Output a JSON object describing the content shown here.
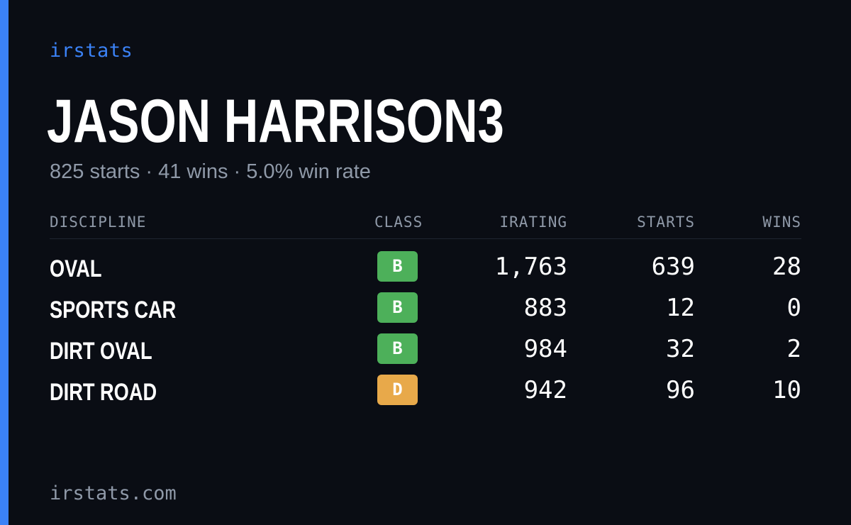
{
  "brand": "irstats",
  "driver": {
    "name": "JASON HARRISON3",
    "summary": "825 starts · 41 wins · 5.0% win rate"
  },
  "table": {
    "headers": {
      "discipline": "DISCIPLINE",
      "class": "CLASS",
      "irating": "IRATING",
      "starts": "STARTS",
      "wins": "WINS"
    },
    "rows": [
      {
        "discipline": "OVAL",
        "class": "B",
        "class_color": "#4db05a",
        "irating": "1,763",
        "starts": "639",
        "wins": "28"
      },
      {
        "discipline": "SPORTS CAR",
        "class": "B",
        "class_color": "#4db05a",
        "irating": "883",
        "starts": "12",
        "wins": "0"
      },
      {
        "discipline": "DIRT OVAL",
        "class": "B",
        "class_color": "#4db05a",
        "irating": "984",
        "starts": "32",
        "wins": "2"
      },
      {
        "discipline": "DIRT ROAD",
        "class": "D",
        "class_color": "#e8a94a",
        "irating": "942",
        "starts": "96",
        "wins": "10"
      }
    ]
  },
  "footer": "irstats.com",
  "colors": {
    "accent": "#3b82f6",
    "background": "#0a0d14",
    "muted_text": "#8f99a8"
  }
}
